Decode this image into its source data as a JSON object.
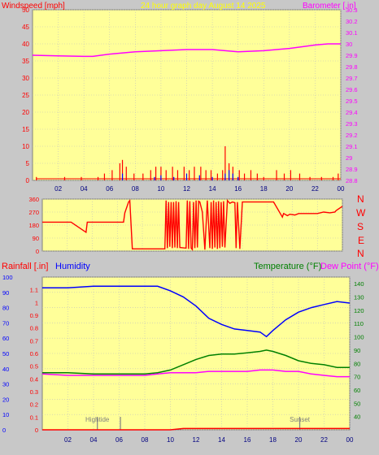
{
  "header": {
    "wind_label": "Windspeed [mph]",
    "title": "24 hour graph day   August 14 2025",
    "baro_label": "Barometer [.in]"
  },
  "footer": {
    "rain_label": "Rainfall [.in]",
    "humidity_label": "Humidity",
    "temp_label": "Temperature (°F)",
    "dew_label": "Dew Point (°F)"
  },
  "compass": [
    "N",
    "W",
    "S",
    "E",
    "N"
  ],
  "annotations": {
    "hightide": "Hightide",
    "sunset": "Sunset"
  },
  "colors": {
    "plot_bg": "#ffff99",
    "page_bg": "#c8c8c8",
    "wind": "#ff0000",
    "gust": "#ff0000",
    "wind_avg": "#0000ff",
    "wind_min": "#008000",
    "barometer": "#ff00ff",
    "direction": "#ff0000",
    "humidity": "#0000ff",
    "temperature": "#008000",
    "dewpoint": "#ff00ff",
    "rainfall": "#ff0000",
    "title": "#ffff00",
    "label_red": "#ff0000",
    "label_magenta": "#ff00ff",
    "label_blue": "#0000ff",
    "label_green": "#008000"
  },
  "chart_data": [
    {
      "type": "line",
      "name": "wind-barometer",
      "title": "24 hour graph day   August 14 2025",
      "xticks": [
        "02",
        "04",
        "06",
        "08",
        "10",
        "12",
        "14",
        "16",
        "18",
        "20",
        "22",
        "00"
      ],
      "ylabel_left": "Windspeed [mph]",
      "ylim_left": [
        0,
        50
      ],
      "yticks_left": [
        0,
        5,
        10,
        15,
        20,
        25,
        30,
        35,
        40,
        45,
        50
      ],
      "ylabel_right": "Barometer [.in]",
      "ylim_right": [
        28.8,
        30.3
      ],
      "yticks_right": [
        "28.8",
        "28.9",
        "29",
        "29.1",
        "29.2",
        "29.3",
        "29.4",
        "29.5",
        "29.6",
        "29.7",
        "29.8",
        "29.9",
        "30",
        "30.1",
        "30.2",
        "30.3"
      ],
      "series": [
        {
          "name": "Barometer",
          "x": [
            0,
            2,
            4,
            4.7,
            6,
            8,
            10,
            12,
            14,
            16,
            18,
            20,
            22,
            23,
            24
          ],
          "y": [
            29.9,
            29.895,
            29.89,
            29.89,
            29.91,
            29.93,
            29.94,
            29.95,
            29.95,
            29.93,
            29.94,
            29.96,
            29.99,
            30.0,
            30.0
          ]
        },
        {
          "name": "Gust",
          "x": [
            0.3,
            2.5,
            3.8,
            5.1,
            5.6,
            6.2,
            6.8,
            7.0,
            7.3,
            7.9,
            8.6,
            9.2,
            9.6,
            10.0,
            10.4,
            10.9,
            11.3,
            11.8,
            12.2,
            12.6,
            13.1,
            13.5,
            13.9,
            14.4,
            14.8,
            15.0,
            15.3,
            15.6,
            16.1,
            16.5,
            17.0,
            17.5,
            18.0,
            19.0,
            19.6,
            20.1,
            20.8,
            21.6,
            22.5,
            23.4,
            23.8
          ],
          "y": [
            1,
            1,
            1,
            1,
            2,
            3,
            5,
            6,
            4,
            2,
            2,
            3,
            4,
            4,
            3,
            4,
            3,
            4,
            3,
            4,
            4,
            3,
            3,
            2,
            3,
            10,
            5,
            4,
            3,
            2,
            3,
            2,
            1,
            3,
            2,
            3,
            2,
            1,
            1,
            1,
            2
          ]
        },
        {
          "name": "Average",
          "x": [
            7,
            9.5,
            10,
            11,
            12,
            13,
            14,
            15,
            15.3,
            15.6,
            16
          ],
          "y": [
            2,
            1,
            1.5,
            1,
            2,
            1.5,
            1,
            2,
            3,
            2,
            1
          ]
        }
      ]
    },
    {
      "type": "line",
      "name": "wind-direction",
      "xticks": [
        "02",
        "04",
        "06",
        "08",
        "10",
        "12",
        "14",
        "16",
        "18",
        "20",
        "22",
        "00"
      ],
      "ylim": [
        0,
        360
      ],
      "yticks": [
        0,
        90,
        180,
        270,
        360
      ],
      "series": [
        {
          "name": "Direction",
          "x": [
            0,
            2.2,
            2.3,
            3.5,
            3.6,
            6.5,
            6.6,
            6.9,
            7.0,
            7.2,
            7.3,
            9.8,
            9.9,
            10.0,
            10.1,
            10.2,
            10.3,
            10.4,
            10.5,
            10.6,
            10.7,
            10.8,
            10.9,
            11.0,
            11.5,
            11.6,
            11.7,
            11.8,
            11.9,
            12.0,
            12.1,
            12.2,
            12.3,
            12.4,
            12.5,
            12.6,
            12.8,
            13.0,
            13.2,
            13.4,
            13.5,
            13.6,
            13.7,
            13.8,
            13.9,
            14.0,
            14.1,
            14.2,
            14.3,
            14.4,
            14.5,
            14.6,
            14.8,
            15.0,
            15.2,
            15.4,
            15.5,
            15.6,
            15.8,
            16.0,
            16.5,
            17.5,
            18.5,
            19.2,
            19.3,
            19.6,
            19.8,
            20.2,
            20.5,
            21.0,
            21.5,
            22.0,
            22.5,
            23.0,
            23.4,
            23.5,
            24
          ],
          "y": [
            200,
            200,
            200,
            130,
            200,
            200,
            265,
            340,
            350,
            15,
            15,
            15,
            350,
            20,
            340,
            30,
            340,
            20,
            340,
            25,
            345,
            20,
            340,
            25,
            20,
            350,
            15,
            345,
            20,
            10,
            340,
            20,
            350,
            25,
            345,
            340,
            270,
            10,
            350,
            20,
            340,
            15,
            350,
            25,
            340,
            15,
            345,
            20,
            340,
            30,
            345,
            25,
            350,
            330,
            340,
            335,
            20,
            340,
            15,
            340,
            340,
            340,
            340,
            235,
            260,
            245,
            255,
            250,
            260,
            260,
            260,
            260,
            270,
            265,
            270,
            280,
            310
          ]
        }
      ]
    },
    {
      "type": "line",
      "name": "rain-humidity-temperature",
      "xticks": [
        "02",
        "04",
        "06",
        "08",
        "10",
        "12",
        "14",
        "16",
        "18",
        "20",
        "22",
        "00"
      ],
      "ylabel_left": "Rainfall [.in]",
      "ylim_left_rain": [
        0,
        1.2
      ],
      "yticks_rain": [
        "0",
        "0.1",
        "0.2",
        "0.3",
        "0.4",
        "0.5",
        "0.6",
        "0.7",
        "0.8",
        "0.9",
        "1",
        "1.1"
      ],
      "ylim_left_humidity": [
        0,
        100
      ],
      "yticks_humidity": [
        0,
        10,
        20,
        30,
        40,
        50,
        60,
        70,
        80,
        90,
        100
      ],
      "ylabel_right": "Temperature (°F)",
      "ylabel_right2": "Dew Point (°F)",
      "ylim_right": [
        30,
        145
      ],
      "yticks_right": [
        40,
        50,
        60,
        70,
        80,
        90,
        100,
        110,
        120,
        130,
        140
      ],
      "series": [
        {
          "name": "Humidity",
          "x": [
            0,
            2,
            4,
            6,
            8,
            9,
            10,
            11,
            12,
            13,
            14,
            15,
            16,
            17,
            17.5,
            18,
            19,
            20,
            21,
            22,
            23,
            24
          ],
          "y": [
            93,
            93,
            94,
            94,
            94,
            94,
            91,
            87,
            81,
            73,
            69,
            66,
            65,
            64,
            61,
            65,
            72,
            77,
            80,
            82,
            84,
            83
          ]
        },
        {
          "name": "Temperature",
          "x": [
            0,
            2,
            4,
            6,
            8,
            9,
            10,
            11,
            12,
            13,
            14,
            15,
            16,
            17,
            17.5,
            18,
            19,
            20,
            21,
            22,
            23,
            24
          ],
          "y": [
            73,
            73,
            72,
            72,
            72,
            73,
            75,
            79,
            83,
            86,
            87,
            87,
            88,
            89,
            90,
            89,
            86,
            82,
            80,
            79,
            77,
            77
          ]
        },
        {
          "name": "Dew Point",
          "x": [
            0,
            2,
            4,
            6,
            8,
            9,
            10,
            11,
            12,
            13,
            14,
            15,
            16,
            17,
            17.5,
            18,
            19,
            20,
            21,
            22,
            23,
            24
          ],
          "y": [
            72,
            71,
            71,
            71,
            71,
            72,
            73,
            73,
            73,
            74,
            74,
            74,
            74,
            75,
            75,
            75,
            74,
            74,
            72,
            71,
            70,
            70
          ]
        },
        {
          "name": "Rainfall",
          "x": [
            0,
            10,
            11,
            24
          ],
          "y": [
            0,
            0,
            0.01,
            0.01
          ]
        }
      ],
      "markers": [
        {
          "label": "Hightide",
          "x": 4.3
        },
        {
          "label": "",
          "x": 6.1
        },
        {
          "label": "Sunset",
          "x": 20.1
        }
      ]
    }
  ]
}
